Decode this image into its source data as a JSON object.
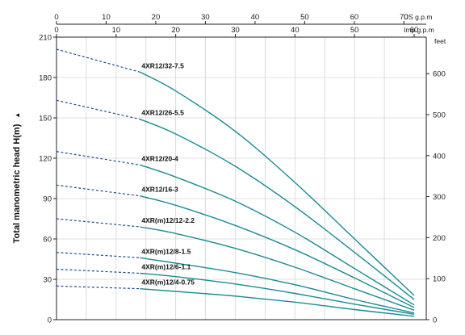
{
  "chart_data": {
    "type": "line",
    "title": "",
    "ylabel": "Total manometric head H(m)",
    "ylabel_arrow": "▲",
    "left_axis": {
      "range": [
        0,
        210
      ],
      "ticks": [
        "0",
        "30",
        "60",
        "90",
        "120",
        "150",
        "180",
        "210"
      ]
    },
    "right_axis": {
      "unit": "feet",
      "range": [
        0,
        689
      ],
      "ticks": [
        "0",
        "100",
        "200",
        "300",
        "400",
        "500",
        "600"
      ]
    },
    "top_axis_us": {
      "unit": "US g.p.m",
      "range": [
        0,
        70
      ],
      "ticks": [
        "0",
        "10",
        "20",
        "30",
        "40",
        "50",
        "60",
        "70"
      ]
    },
    "top_axis_imp": {
      "unit": "Imp g.p.m",
      "range": [
        0,
        60
      ],
      "ticks": [
        "0",
        "10",
        "20",
        "30",
        "40",
        "50",
        "60"
      ]
    },
    "grid": true,
    "dashed_segment_end_imp_gpm": 14,
    "colors": {
      "curve": "#1b8b93",
      "grid": "#d4d4d4",
      "axis": "#222222"
    },
    "series": [
      {
        "name": "4XR12/32-7.5",
        "x": [
          0,
          14,
          20,
          30,
          40,
          50,
          60
        ],
        "y": [
          201,
          184,
          170,
          140,
          102,
          60,
          18
        ]
      },
      {
        "name": "4XR12/26-5.5",
        "x": [
          0,
          14,
          20,
          30,
          40,
          50,
          60
        ],
        "y": [
          163,
          149,
          138,
          114,
          84,
          50,
          15
        ]
      },
      {
        "name": "4XR12/20-4",
        "x": [
          0,
          14,
          20,
          30,
          40,
          50,
          60
        ],
        "y": [
          125,
          115,
          106,
          88,
          65,
          38,
          11
        ]
      },
      {
        "name": "4XR12/16-3",
        "x": [
          0,
          14,
          20,
          30,
          40,
          50,
          60
        ],
        "y": [
          100,
          92,
          85,
          70,
          52,
          31,
          9
        ]
      },
      {
        "name": "4XR(m)12/12-2.2",
        "x": [
          0,
          14,
          20,
          30,
          40,
          50,
          60
        ],
        "y": [
          75,
          69,
          64,
          53,
          39,
          23,
          7
        ]
      },
      {
        "name": "4XR(m)12/8-1.5",
        "x": [
          0,
          14,
          20,
          30,
          40,
          50,
          60
        ],
        "y": [
          50,
          46,
          42,
          35,
          26,
          15,
          5
        ]
      },
      {
        "name": "4XR(m)12/6-1.1",
        "x": [
          0,
          14,
          20,
          30,
          40,
          50,
          60
        ],
        "y": [
          37.5,
          34.5,
          32,
          26.5,
          19.5,
          11.5,
          4
        ]
      },
      {
        "name": "4XR(m)12/4-0.75",
        "x": [
          0,
          14,
          20,
          30,
          40,
          50,
          60
        ],
        "y": [
          25,
          23,
          21,
          17.5,
          13,
          7.5,
          2.5
        ]
      }
    ]
  }
}
